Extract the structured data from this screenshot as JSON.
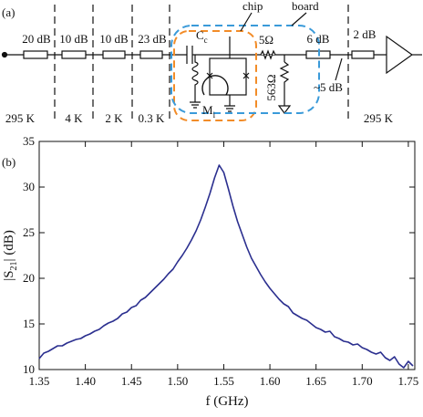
{
  "figure": {
    "panel_a": "(a)",
    "panel_b": "(b)"
  },
  "diagram": {
    "attenuators": [
      "20 dB",
      "10 dB",
      "10 dB",
      "23 dB",
      "6 dB",
      "2 dB"
    ],
    "temperatures": [
      "295 K",
      "4 K",
      "2 K",
      "0.3 K",
      "295 K"
    ],
    "coupling_capacitor": {
      "symbol": "C",
      "subscript": "c"
    },
    "chip": "chip",
    "board": "board",
    "series_resistor": "5Ω",
    "shunt_resistor": "563Ω",
    "loss": "~5 dB",
    "mutual": {
      "symbol": "M",
      "subscript": "i"
    }
  },
  "chart_data": {
    "type": "line",
    "xlabel": "f (GHz)",
    "ylabel": {
      "prefix": "|S",
      "subscript": "21",
      "suffix": "| (dB)"
    },
    "color": "#2b2f8f",
    "xlim": [
      1.35,
      1.757
    ],
    "ylim": [
      10,
      35
    ],
    "xticks": [
      1.35,
      {
        "value": 1.4,
        "label": "1.40"
      },
      1.45,
      {
        "value": 1.5,
        "label": "1.50"
      },
      1.55,
      {
        "value": 1.6,
        "label": "1.60"
      },
      1.65,
      {
        "value": 1.7,
        "label": "1.70"
      },
      1.75
    ],
    "yticks": [
      10,
      15,
      20,
      25,
      30,
      35
    ],
    "x": [
      1.35,
      1.355,
      1.36,
      1.365,
      1.37,
      1.375,
      1.38,
      1.385,
      1.39,
      1.395,
      1.4,
      1.405,
      1.41,
      1.415,
      1.42,
      1.425,
      1.43,
      1.435,
      1.44,
      1.445,
      1.45,
      1.455,
      1.46,
      1.465,
      1.47,
      1.475,
      1.48,
      1.485,
      1.49,
      1.495,
      1.5,
      1.505,
      1.51,
      1.515,
      1.52,
      1.525,
      1.53,
      1.535,
      1.54,
      1.545,
      1.55,
      1.555,
      1.56,
      1.565,
      1.57,
      1.575,
      1.58,
      1.585,
      1.59,
      1.595,
      1.6,
      1.605,
      1.61,
      1.615,
      1.62,
      1.625,
      1.63,
      1.635,
      1.64,
      1.645,
      1.65,
      1.655,
      1.66,
      1.665,
      1.67,
      1.675,
      1.68,
      1.685,
      1.69,
      1.695,
      1.7,
      1.705,
      1.71,
      1.715,
      1.72,
      1.725,
      1.73,
      1.735,
      1.74,
      1.745,
      1.75,
      1.755
    ],
    "values": [
      11.2,
      11.8,
      12.0,
      12.3,
      12.6,
      12.6,
      12.9,
      13.1,
      13.3,
      13.4,
      13.7,
      13.9,
      14.2,
      14.4,
      14.8,
      15.1,
      15.3,
      15.6,
      16.1,
      16.3,
      16.8,
      17.0,
      17.6,
      17.9,
      18.4,
      18.9,
      19.4,
      19.9,
      20.5,
      21.0,
      21.8,
      22.5,
      23.3,
      24.2,
      25.2,
      26.4,
      27.8,
      29.3,
      31.0,
      32.4,
      31.6,
      29.8,
      27.9,
      26.2,
      24.8,
      23.4,
      22.2,
      21.3,
      20.4,
      19.6,
      18.9,
      18.3,
      17.7,
      17.2,
      16.9,
      16.2,
      15.9,
      15.6,
      15.4,
      15.0,
      14.6,
      14.4,
      14.1,
      14.2,
      13.6,
      13.4,
      13.1,
      13.0,
      12.7,
      12.8,
      12.4,
      12.2,
      11.9,
      11.7,
      11.9,
      11.3,
      11.0,
      11.4,
      10.6,
      10.2,
      10.9,
      10.4
    ]
  }
}
